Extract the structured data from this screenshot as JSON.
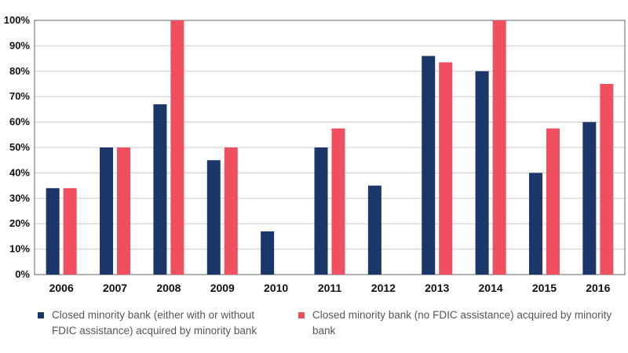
{
  "colors": {
    "series1": "#1b3668",
    "series2": "#f04f5f",
    "grid": "#cccccc",
    "axis": "#666666"
  },
  "chart_data": {
    "type": "bar",
    "title": "",
    "xlabel": "",
    "ylabel": "",
    "ylim": [
      0,
      100
    ],
    "yticks": [
      "0%",
      "10%",
      "20%",
      "30%",
      "40%",
      "50%",
      "60%",
      "70%",
      "80%",
      "90%",
      "100%"
    ],
    "categories": [
      "2006",
      "2007",
      "2008",
      "2009",
      "2010",
      "2011",
      "2012",
      "2013",
      "2014",
      "2015",
      "2016"
    ],
    "series": [
      {
        "name": "Closed minority bank (either with or without FDIC assistance) acquired by minority bank",
        "values": [
          34,
          50,
          67,
          45,
          17,
          50,
          35,
          86,
          80,
          40,
          60
        ]
      },
      {
        "name": "Closed minority bank (no FDIC assistance) acquired by minority bank",
        "values": [
          34,
          50,
          100,
          50,
          null,
          57.5,
          null,
          83.5,
          100,
          57.5,
          75
        ]
      }
    ],
    "legend": {
      "position": "bottom",
      "items": [
        {
          "line1": "Closed minority bank (either with or without",
          "line2": "FDIC assistance) acquired by minority bank"
        },
        {
          "line1": "Closed minority bank (no FDIC assistance) acquired by minority bank",
          "line2": ""
        }
      ]
    }
  }
}
